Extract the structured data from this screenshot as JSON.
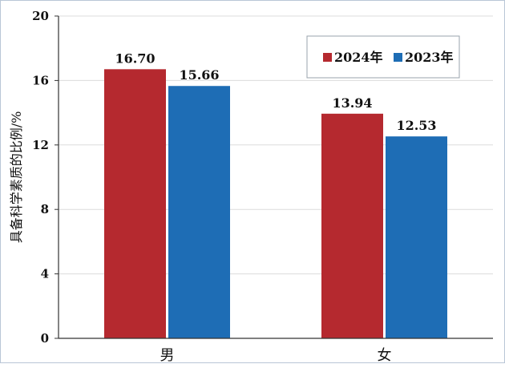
{
  "chart_data": {
    "type": "bar",
    "title": "",
    "xlabel": "",
    "ylabel": "具备科学素质的比例/%",
    "categories": [
      "男",
      "女"
    ],
    "series": [
      {
        "name": "2024年",
        "values": [
          16.7,
          13.94
        ],
        "color": "#b5292f"
      },
      {
        "name": "2023年",
        "values": [
          15.66,
          12.53
        ],
        "color": "#1e6db5"
      }
    ],
    "data_labels": [
      [
        "16.70",
        "13.94"
      ],
      [
        "15.66",
        "12.53"
      ]
    ],
    "ylim": [
      0,
      20
    ],
    "yticks": [
      0,
      4,
      8,
      12,
      16,
      20
    ],
    "grid": true,
    "legend_position": "top-right"
  }
}
